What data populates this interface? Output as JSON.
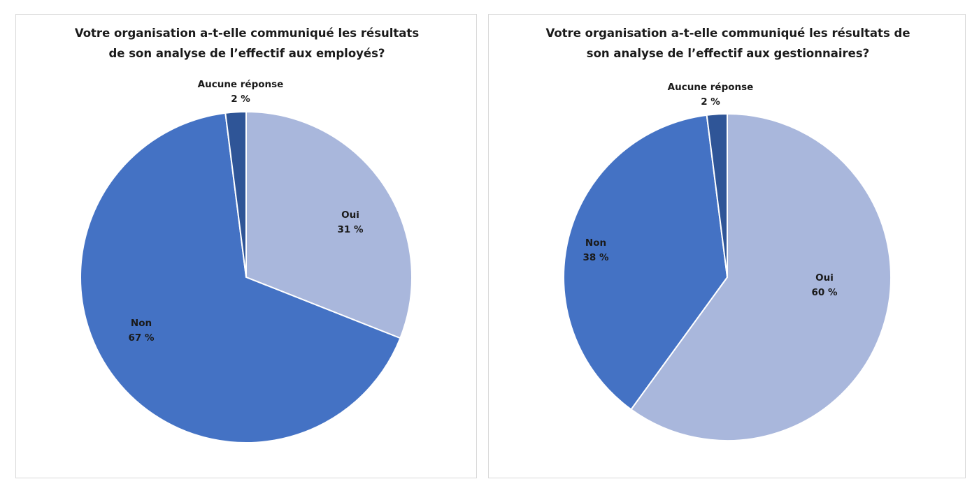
{
  "colors": {
    "oui": "#a9b7dc",
    "non": "#4472c4",
    "aucune": "#2f5597",
    "separator": "#ffffff"
  },
  "chart_data": [
    {
      "type": "pie",
      "title": "Votre organisation a-t-elle communiqué les résultats de son analyse de l’effectif aux employés?",
      "slices": [
        {
          "key": "oui",
          "label": "Oui",
          "value": 31,
          "value_label": "31 %"
        },
        {
          "key": "non",
          "label": "Non",
          "value": 67,
          "value_label": "67 %"
        },
        {
          "key": "aucune",
          "label": "Aucune réponse",
          "value": 2,
          "value_label": "2 %"
        }
      ]
    },
    {
      "type": "pie",
      "title": "Votre organisation a-t-elle communiqué les résultats de son analyse de l’effectif aux gestionnaires?",
      "slices": [
        {
          "key": "oui",
          "label": "Oui",
          "value": 60,
          "value_label": "60 %"
        },
        {
          "key": "non",
          "label": "Non",
          "value": 38,
          "value_label": "38 %"
        },
        {
          "key": "aucune",
          "label": "Aucune réponse",
          "value": 2,
          "value_label": "2 %"
        }
      ]
    }
  ]
}
